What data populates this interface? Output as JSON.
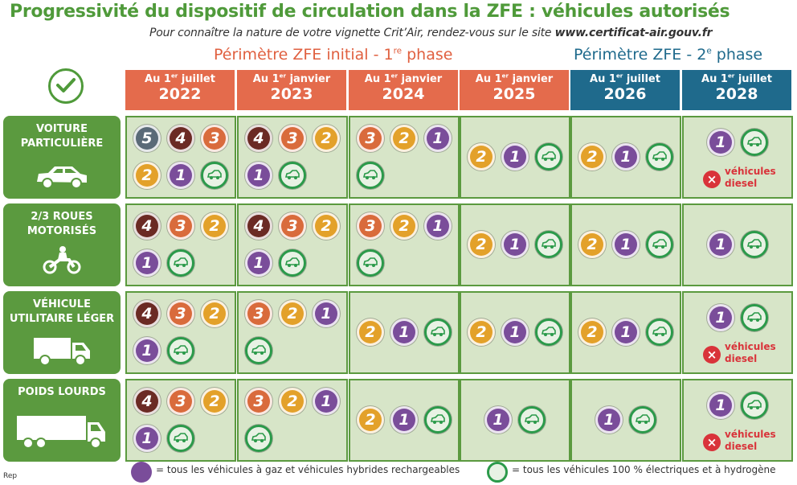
{
  "title": "Progressivité du dispositif de circulation dans la ZFE : véhicules autorisés",
  "subtitle_text": "Pour connaître la nature de votre vignette Crit’Air, rendez-vous sur le site",
  "subtitle_link": "www.certificat-air.gouv.fr",
  "phase1_text": "Périmètre ZFE initial - 1",
  "phase1_sup": "re",
  "phase1_suffix": " phase",
  "phase2_text": "Périmètre ZFE - 2",
  "phase2_sup": "e",
  "phase2_suffix": " phase",
  "columns": [
    {
      "line1": "Au 1",
      "sup": "er",
      "line1b": " juillet",
      "year": "2022",
      "color": "#e46b4c"
    },
    {
      "line1": "Au 1",
      "sup": "er",
      "line1b": " janvier",
      "year": "2023",
      "color": "#e46b4c"
    },
    {
      "line1": "Au 1",
      "sup": "er",
      "line1b": " janvier",
      "year": "2024",
      "color": "#e46b4c"
    },
    {
      "line1": "Au 1",
      "sup": "er",
      "line1b": " janvier",
      "year": "2025",
      "color": "#e46b4c"
    },
    {
      "line1": "Au 1",
      "sup": "er",
      "line1b": " juillet",
      "year": "2026",
      "color": "#1f6a8c"
    },
    {
      "line1": "Au 1",
      "sup": "er",
      "line1b": " juillet",
      "year": "2028",
      "color": "#1f6a8c"
    }
  ],
  "rows": [
    {
      "label": "VOITURE\nPARTICULIÈRE",
      "icon": "car-icon",
      "cells": [
        [
          "5",
          "4",
          "3",
          "2",
          "1",
          "E"
        ],
        [
          "4",
          "3",
          "2",
          "1",
          "E"
        ],
        [
          "3",
          "2",
          "1",
          "E"
        ],
        [
          "2",
          "1",
          "E"
        ],
        [
          "2",
          "1",
          "E"
        ],
        [
          "1",
          "E",
          "X"
        ]
      ]
    },
    {
      "label": "2/3 ROUES\nMOTORISÉS",
      "icon": "motorbike-icon",
      "cells": [
        [
          "4",
          "3",
          "2",
          "1",
          "E"
        ],
        [
          "4",
          "3",
          "2",
          "1",
          "E"
        ],
        [
          "3",
          "2",
          "1",
          "E"
        ],
        [
          "2",
          "1",
          "E"
        ],
        [
          "2",
          "1",
          "E"
        ],
        [
          "1",
          "E"
        ]
      ]
    },
    {
      "label": "VÉHICULE\nUTILITAIRE LÉGER",
      "icon": "van-icon",
      "cells": [
        [
          "4",
          "3",
          "2",
          "1",
          "E"
        ],
        [
          "3",
          "2",
          "1",
          "E"
        ],
        [
          "2",
          "1",
          "E"
        ],
        [
          "2",
          "1",
          "E"
        ],
        [
          "2",
          "1",
          "E"
        ],
        [
          "1",
          "E",
          "X"
        ]
      ]
    },
    {
      "label": "POIDS LOURDS",
      "icon": "truck-icon",
      "cells": [
        [
          "4",
          "3",
          "2",
          "1",
          "E"
        ],
        [
          "3",
          "2",
          "1",
          "E"
        ],
        [
          "2",
          "1",
          "E"
        ],
        [
          "1",
          "E"
        ],
        [
          "1",
          "E"
        ],
        [
          "1",
          "E",
          "X"
        ]
      ]
    }
  ],
  "diesel_text": "véhicules\ndiesel",
  "legend1": "= tous les véhicules à gaz et véhicules hybrides rechargeables",
  "legend2": "= tous les véhicules 100 % électriques et à hydrogène",
  "logo_text": "Rep"
}
